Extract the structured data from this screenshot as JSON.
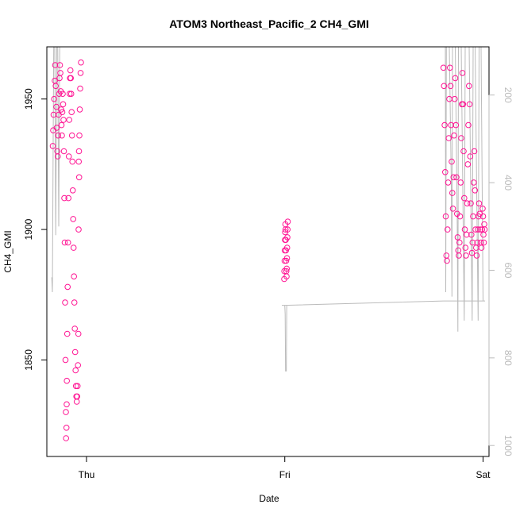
{
  "chart_data": {
    "type": "scatter",
    "title": "ATOM3 Northeast_Pacific_2 CH4_GMI",
    "xlabel": "Date",
    "ylabel": "CH4_GMI",
    "x_ticks": [
      "Thu",
      "Fri",
      "Sat"
    ],
    "x_range_days": [
      -0.2,
      2.03
    ],
    "ylim": [
      1813,
      1970
    ],
    "y_ticks": [
      1850,
      1900,
      1950
    ],
    "secondary_axis": {
      "description": "pressure",
      "inverted": true,
      "range": [
        1025,
        90
      ],
      "ticks": [
        200,
        400,
        600,
        800,
        1000
      ]
    },
    "colors": {
      "points": "#ff1493",
      "pressure_line": "#bbbbbb",
      "axis": "#000000"
    },
    "grid": false,
    "legend": "none",
    "series": [
      {
        "name": "",
        "style": "points",
        "points": [
          [
            -0.17,
            1932
          ],
          [
            -0.168,
            1938
          ],
          [
            -0.166,
            1944
          ],
          [
            -0.163,
            1950
          ],
          [
            -0.16,
            1957
          ],
          [
            -0.158,
            1963
          ],
          [
            -0.155,
            1955
          ],
          [
            -0.152,
            1947
          ],
          [
            -0.15,
            1939
          ],
          [
            -0.147,
            1930
          ],
          [
            -0.145,
            1928
          ],
          [
            -0.143,
            1936
          ],
          [
            -0.14,
            1944
          ],
          [
            -0.138,
            1952
          ],
          [
            -0.136,
            1958
          ],
          [
            -0.134,
            1963
          ],
          [
            -0.132,
            1960
          ],
          [
            -0.13,
            1953
          ],
          [
            -0.128,
            1946
          ],
          [
            -0.126,
            1940
          ],
          [
            -0.124,
            1936
          ],
          [
            -0.122,
            1945
          ],
          [
            -0.12,
            1952
          ],
          [
            -0.118,
            1948
          ],
          [
            -0.116,
            1942
          ],
          [
            -0.114,
            1930
          ],
          [
            -0.112,
            1912
          ],
          [
            -0.11,
            1895
          ],
          [
            -0.108,
            1872
          ],
          [
            -0.106,
            1850
          ],
          [
            -0.104,
            1830
          ],
          [
            -0.103,
            1820
          ],
          [
            -0.101,
            1824
          ],
          [
            -0.1,
            1833
          ],
          [
            -0.099,
            1842
          ],
          [
            -0.097,
            1860
          ],
          [
            -0.095,
            1878
          ],
          [
            -0.093,
            1895
          ],
          [
            -0.091,
            1912
          ],
          [
            -0.089,
            1928
          ],
          [
            -0.087,
            1942
          ],
          [
            -0.085,
            1952
          ],
          [
            -0.083,
            1958
          ],
          [
            -0.081,
            1961
          ],
          [
            -0.079,
            1958
          ],
          [
            -0.077,
            1952
          ],
          [
            -0.075,
            1945
          ],
          [
            -0.073,
            1936
          ],
          [
            -0.071,
            1926
          ],
          [
            -0.069,
            1915
          ],
          [
            -0.067,
            1904
          ],
          [
            -0.065,
            1893
          ],
          [
            -0.063,
            1882
          ],
          [
            -0.061,
            1872
          ],
          [
            -0.059,
            1862
          ],
          [
            -0.057,
            1853
          ],
          [
            -0.055,
            1846
          ],
          [
            -0.053,
            1840
          ],
          [
            -0.051,
            1836
          ],
          [
            -0.049,
            1834
          ],
          [
            -0.047,
            1836
          ],
          [
            -0.045,
            1840
          ],
          [
            -0.043,
            1848
          ],
          [
            -0.041,
            1860
          ],
          [
            -0.04,
            1900
          ],
          [
            -0.039,
            1926
          ],
          [
            -0.038,
            1930
          ],
          [
            -0.037,
            1920
          ],
          [
            -0.036,
            1936
          ],
          [
            -0.034,
            1946
          ],
          [
            -0.032,
            1954
          ],
          [
            -0.03,
            1960
          ],
          [
            -0.028,
            1964
          ],
          [
            0.997,
            1881
          ],
          [
            0.998,
            1884
          ],
          [
            0.999,
            1888
          ],
          [
            1.0,
            1892
          ],
          [
            1.001,
            1896
          ],
          [
            1.002,
            1899
          ],
          [
            1.003,
            1902
          ],
          [
            1.004,
            1900
          ],
          [
            1.005,
            1896
          ],
          [
            1.006,
            1892
          ],
          [
            1.007,
            1888
          ],
          [
            1.008,
            1884
          ],
          [
            1.009,
            1882
          ],
          [
            1.01,
            1885
          ],
          [
            1.011,
            1889
          ],
          [
            1.012,
            1893
          ],
          [
            1.013,
            1897
          ],
          [
            1.014,
            1900
          ],
          [
            1.015,
            1903
          ],
          [
            1.8,
            1962
          ],
          [
            1.803,
            1955
          ],
          [
            1.806,
            1940
          ],
          [
            1.809,
            1922
          ],
          [
            1.812,
            1905
          ],
          [
            1.815,
            1890
          ],
          [
            1.818,
            1888
          ],
          [
            1.821,
            1900
          ],
          [
            1.824,
            1918
          ],
          [
            1.827,
            1935
          ],
          [
            1.83,
            1950
          ],
          [
            1.833,
            1962
          ],
          [
            1.836,
            1955
          ],
          [
            1.839,
            1940
          ],
          [
            1.842,
            1926
          ],
          [
            1.845,
            1914
          ],
          [
            1.848,
            1908
          ],
          [
            1.851,
            1920
          ],
          [
            1.854,
            1936
          ],
          [
            1.857,
            1950
          ],
          [
            1.86,
            1958
          ],
          [
            1.863,
            1940
          ],
          [
            1.866,
            1920
          ],
          [
            1.869,
            1906
          ],
          [
            1.872,
            1897
          ],
          [
            1.875,
            1892
          ],
          [
            1.878,
            1890
          ],
          [
            1.881,
            1895
          ],
          [
            1.884,
            1905
          ],
          [
            1.887,
            1918
          ],
          [
            1.89,
            1935
          ],
          [
            1.893,
            1948
          ],
          [
            1.896,
            1960
          ],
          [
            1.899,
            1948
          ],
          [
            1.902,
            1930
          ],
          [
            1.905,
            1912
          ],
          [
            1.908,
            1900
          ],
          [
            1.911,
            1893
          ],
          [
            1.914,
            1890
          ],
          [
            1.917,
            1898
          ],
          [
            1.92,
            1910
          ],
          [
            1.923,
            1925
          ],
          [
            1.926,
            1940
          ],
          [
            1.929,
            1955
          ],
          [
            1.932,
            1948
          ],
          [
            1.935,
            1928
          ],
          [
            1.938,
            1910
          ],
          [
            1.941,
            1898
          ],
          [
            1.944,
            1891
          ],
          [
            1.947,
            1895
          ],
          [
            1.95,
            1905
          ],
          [
            1.953,
            1918
          ],
          [
            1.956,
            1930
          ],
          [
            1.959,
            1915
          ],
          [
            1.962,
            1900
          ],
          [
            1.965,
            1893
          ],
          [
            1.968,
            1890
          ],
          [
            1.971,
            1895
          ],
          [
            1.974,
            1900
          ],
          [
            1.977,
            1905
          ],
          [
            1.98,
            1910
          ],
          [
            1.983,
            1906
          ],
          [
            1.986,
            1900
          ],
          [
            1.989,
            1895
          ],
          [
            1.992,
            1893
          ],
          [
            1.995,
            1900
          ],
          [
            1.998,
            1908
          ],
          [
            2.0,
            1905
          ],
          [
            2.002,
            1898
          ],
          [
            2.004,
            1895
          ],
          [
            2.006,
            1902
          ],
          [
            2.008,
            1900
          ]
        ]
      },
      {
        "name": "",
        "style": "line",
        "axis": "secondary",
        "points": [
          [
            -0.175,
            616
          ],
          [
            -0.172,
            650
          ],
          [
            -0.168,
            300
          ],
          [
            -0.165,
            90
          ],
          [
            -0.16,
            90
          ],
          [
            -0.155,
            520
          ],
          [
            -0.15,
            90
          ],
          [
            -0.145,
            90
          ],
          [
            -0.14,
            500
          ],
          [
            -0.135,
            90
          ],
          [
            -0.13,
            90
          ],
          [
            -0.12,
            90
          ],
          [
            -0.11,
            90
          ],
          [
            -0.1,
            90
          ],
          [
            -0.06,
            90
          ],
          [
            -0.04,
            90
          ],
          [
            -0.02,
            90
          ],
          [
            1.0,
            90
          ],
          [
            1.78,
            90
          ],
          [
            1.8,
            90
          ],
          [
            1.81,
            90
          ],
          [
            1.812,
            650
          ],
          [
            1.815,
            90
          ],
          [
            1.83,
            90
          ],
          [
            1.84,
            400
          ],
          [
            1.843,
            660
          ],
          [
            1.846,
            90
          ],
          [
            1.86,
            90
          ],
          [
            1.87,
            500
          ],
          [
            1.873,
            740
          ],
          [
            1.876,
            90
          ],
          [
            1.89,
            90
          ],
          [
            1.9,
            500
          ],
          [
            1.905,
            715
          ],
          [
            1.91,
            90
          ],
          [
            1.93,
            90
          ],
          [
            1.94,
            500
          ],
          [
            1.945,
            715
          ],
          [
            1.95,
            90
          ],
          [
            1.96,
            90
          ],
          [
            1.97,
            500
          ],
          [
            1.975,
            715
          ],
          [
            1.98,
            90
          ],
          [
            1.99,
            90
          ],
          [
            2.0,
            670
          ],
          [
            2.01,
            670
          ],
          [
            1.8,
            670
          ],
          [
            1.0,
            680
          ],
          [
            0.998,
            680
          ],
          [
            0.99,
            680
          ],
          [
            0.985,
            680
          ],
          [
            0.985,
            680
          ],
          [
            1.0,
            680
          ],
          [
            1.002,
            700
          ],
          [
            1.004,
            830
          ],
          [
            1.008,
            830
          ],
          [
            1.01,
            680
          ]
        ]
      }
    ]
  }
}
